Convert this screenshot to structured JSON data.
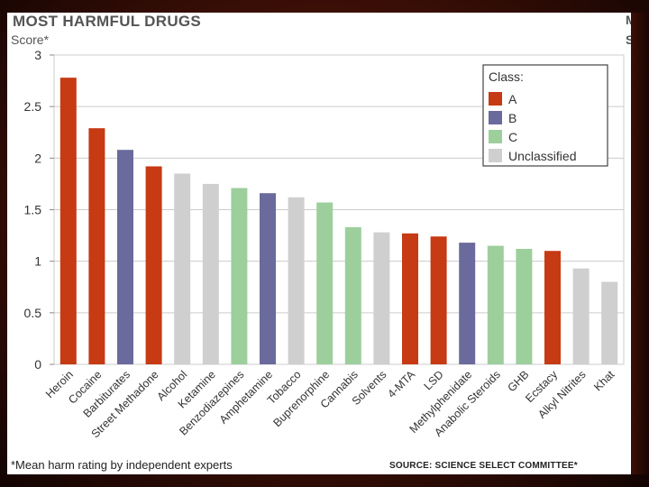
{
  "slide": {
    "edge_letter_top": "M",
    "edge_letter_second": "S"
  },
  "colors": {
    "A": "#c63a14",
    "B": "#6b6a9c",
    "C": "#9ccf9c",
    "Unclassified": "#cfcfcf"
  },
  "chart_data": {
    "type": "bar",
    "title": "MOST HARMFUL DRUGS",
    "ylabel": "Score*",
    "footnote": "*Mean harm rating by independent experts",
    "source": "SOURCE: SCIENCE SELECT COMMITTEE*",
    "ylim": [
      0,
      3
    ],
    "yticks": [
      "0",
      "0.5",
      "1",
      "1.5",
      "2",
      "2.5",
      "3"
    ],
    "grid": true,
    "legend_position": "top-right",
    "legend": {
      "title": "Class:",
      "entries": [
        {
          "label": "A",
          "class": "A"
        },
        {
          "label": "B",
          "class": "B"
        },
        {
          "label": "C",
          "class": "C"
        },
        {
          "label": "Unclassified",
          "class": "Unclassified"
        }
      ]
    },
    "categories": [
      "Heroin",
      "Cocaine",
      "Barbiturates",
      "Street Methadone",
      "Alcohol",
      "Ketamine",
      "Benzodiazepines",
      "Amphetamine",
      "Tobacco",
      "Buprenorphine",
      "Cannabis",
      "Solvents",
      "4-MTA",
      "LSD",
      "Methylphenidate",
      "Anabolic Steroids",
      "GHB",
      "Ecstacy",
      "Alkyl Nitrites",
      "Khat"
    ],
    "values": [
      2.78,
      2.29,
      2.08,
      1.92,
      1.85,
      1.75,
      1.71,
      1.66,
      1.62,
      1.57,
      1.33,
      1.28,
      1.27,
      1.24,
      1.18,
      1.15,
      1.12,
      1.1,
      0.93,
      0.8
    ],
    "classes": [
      "A",
      "A",
      "B",
      "A",
      "Unclassified",
      "Unclassified",
      "C",
      "B",
      "Unclassified",
      "C",
      "C",
      "Unclassified",
      "A",
      "A",
      "B",
      "C",
      "C",
      "A",
      "Unclassified",
      "Unclassified"
    ]
  }
}
